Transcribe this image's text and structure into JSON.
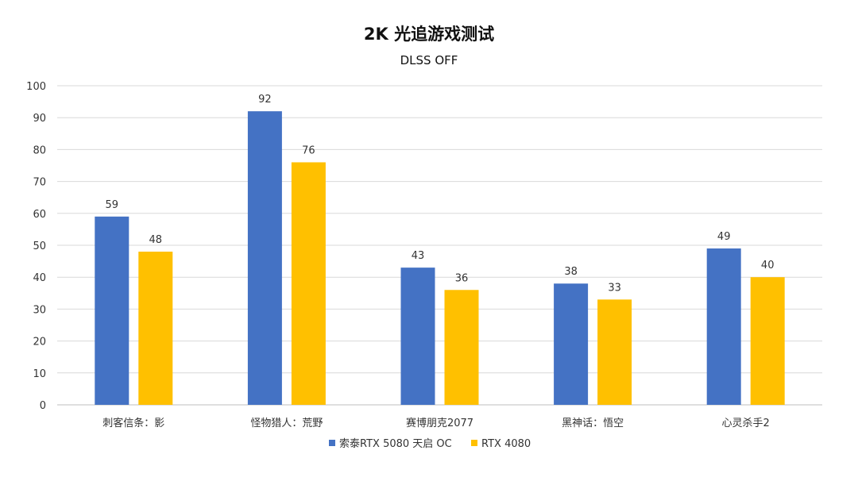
{
  "chart_data": {
    "type": "bar",
    "title": "2K 光追游戏测试",
    "subtitle": "DLSS OFF",
    "xlabel": "",
    "ylabel": "",
    "ylim": [
      0,
      100
    ],
    "yticks": [
      0,
      10,
      20,
      30,
      40,
      50,
      60,
      70,
      80,
      90,
      100
    ],
    "grid": true,
    "legend_position": "bottom",
    "categories": [
      "刺客信条：影",
      "怪物猎人：荒野",
      "赛博朋克2077",
      "黑神话：悟空",
      "心灵杀手2"
    ],
    "series": [
      {
        "name": "索泰RTX 5080 天启 OC",
        "color": "#4472C4",
        "values": [
          59,
          92,
          43,
          38,
          49
        ]
      },
      {
        "name": "RTX 4080",
        "color": "#FFC000",
        "values": [
          48,
          76,
          36,
          33,
          40
        ]
      }
    ]
  }
}
